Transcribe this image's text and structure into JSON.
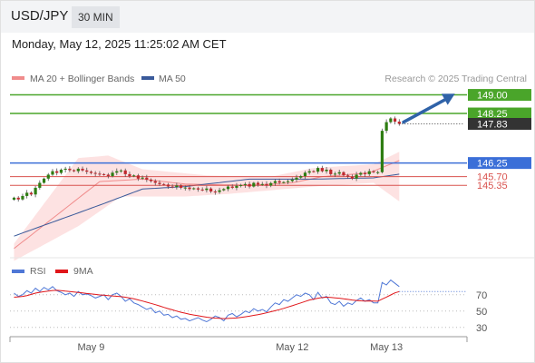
{
  "header": {
    "symbol": "USD/JPY",
    "timeframe": "30 MIN"
  },
  "timestamp": "Monday, May 12, 2025 11:25:02 AM CET",
  "legend": {
    "ma20_label": "MA 20 + Bollinger Bands",
    "ma50_label": "MA 50",
    "credit": "Research © 2025 Trading Central",
    "ma20_color": "#f08c8c",
    "ma50_color": "#3a5a9a"
  },
  "chart_data": [
    {
      "type": "candlestick",
      "title": "",
      "ylim": [
        142.5,
        149.35
      ],
      "x_labels": [
        {
          "label": "May 9",
          "index": 18
        },
        {
          "label": "May 12",
          "index": 65
        },
        {
          "label": "May 13",
          "index": 87
        }
      ],
      "levels": [
        {
          "label": "149.00",
          "value": 149.0,
          "color": "#4aa52a"
        },
        {
          "label": "148.25",
          "value": 148.25,
          "color": "#4aa52a"
        },
        {
          "label": "147.83",
          "value": 147.83,
          "color": "#333333",
          "style": "dotted"
        },
        {
          "label": "146.25",
          "value": 146.25,
          "color": "#3b6fd8"
        },
        {
          "label": "145.70",
          "value": 145.7,
          "color": "#d9534f"
        },
        {
          "label": "145.35",
          "value": 145.35,
          "color": "#d9534f"
        }
      ],
      "closes": [
        144.85,
        144.78,
        144.92,
        145.05,
        144.98,
        145.25,
        145.45,
        145.62,
        145.78,
        145.92,
        145.85,
        145.98,
        146.02,
        145.96,
        145.92,
        146.02,
        145.95,
        145.9,
        145.85,
        145.82,
        145.8,
        145.78,
        145.72,
        145.86,
        145.92,
        145.95,
        145.8,
        145.72,
        145.75,
        145.62,
        145.66,
        145.58,
        145.52,
        145.45,
        145.4,
        145.38,
        145.3,
        145.28,
        145.34,
        145.25,
        145.26,
        145.2,
        145.23,
        145.18,
        145.16,
        145.22,
        145.1,
        145.08,
        145.15,
        145.2,
        145.3,
        145.25,
        145.33,
        145.36,
        145.4,
        145.3,
        145.45,
        145.38,
        145.4,
        145.34,
        145.44,
        145.52,
        145.46,
        145.48,
        145.52,
        145.58,
        145.66,
        145.72,
        145.86,
        145.92,
        145.9,
        146.05,
        145.92,
        145.98,
        145.8,
        145.82,
        145.88,
        145.75,
        145.7,
        145.62,
        145.78,
        145.85,
        145.8,
        145.92,
        145.88,
        145.88,
        147.55,
        147.9,
        148.05,
        147.92,
        147.83
      ],
      "ma20": [
        {
          "i": 0,
          "v": 142.8
        },
        {
          "i": 20,
          "v": 145.5
        },
        {
          "i": 30,
          "v": 145.6
        },
        {
          "i": 40,
          "v": 145.4
        },
        {
          "i": 55,
          "v": 145.35
        },
        {
          "i": 65,
          "v": 145.45
        },
        {
          "i": 72,
          "v": 145.7
        },
        {
          "i": 83,
          "v": 145.85
        },
        {
          "i": 90,
          "v": 146.35
        }
      ],
      "ma50": [
        {
          "i": 0,
          "v": 143.3
        },
        {
          "i": 20,
          "v": 144.55
        },
        {
          "i": 30,
          "v": 145.2
        },
        {
          "i": 40,
          "v": 145.3
        },
        {
          "i": 55,
          "v": 145.6
        },
        {
          "i": 70,
          "v": 145.6
        },
        {
          "i": 84,
          "v": 145.65
        },
        {
          "i": 90,
          "v": 145.8
        }
      ],
      "bb_upper": [
        {
          "i": 0,
          "v": 143.0
        },
        {
          "i": 15,
          "v": 146.45
        },
        {
          "i": 22,
          "v": 146.55
        },
        {
          "i": 30,
          "v": 146.0
        },
        {
          "i": 45,
          "v": 145.75
        },
        {
          "i": 60,
          "v": 145.7
        },
        {
          "i": 70,
          "v": 146.05
        },
        {
          "i": 84,
          "v": 146.2
        },
        {
          "i": 90,
          "v": 146.7
        }
      ],
      "bb_lower": [
        {
          "i": 0,
          "v": 142.3
        },
        {
          "i": 15,
          "v": 143.7
        },
        {
          "i": 25,
          "v": 144.9
        },
        {
          "i": 40,
          "v": 144.9
        },
        {
          "i": 50,
          "v": 145.0
        },
        {
          "i": 60,
          "v": 145.15
        },
        {
          "i": 70,
          "v": 145.3
        },
        {
          "i": 84,
          "v": 145.45
        },
        {
          "i": 90,
          "v": 144.7
        }
      ],
      "projection": {
        "from_index": 91,
        "from_value": 147.9,
        "to_index": 103,
        "to_value": 149.05
      }
    },
    {
      "type": "line",
      "title": "",
      "ylim": [
        22,
        92
      ],
      "series": [
        {
          "name": "RSI",
          "color": "#4f77d6",
          "values": [
            72,
            68,
            70,
            75,
            72,
            78,
            74,
            79,
            76,
            80,
            75,
            73,
            70,
            72,
            68,
            74,
            70,
            71,
            69,
            66,
            68,
            70,
            64,
            70,
            72,
            68,
            62,
            65,
            60,
            58,
            55,
            52,
            54,
            48,
            50,
            45,
            46,
            42,
            44,
            40,
            41,
            38,
            40,
            42,
            39,
            37,
            40,
            44,
            42,
            38,
            45,
            47,
            43,
            46,
            50,
            48,
            53,
            50,
            52,
            49,
            55,
            60,
            58,
            64,
            62,
            66,
            70,
            68,
            72,
            70,
            64,
            73,
            66,
            68,
            60,
            58,
            62,
            56,
            60,
            58,
            63,
            66,
            62,
            64,
            60,
            60,
            85,
            82,
            88,
            84,
            80
          ]
        },
        {
          "name": "9MA",
          "color": "#e0161a",
          "values": [
            67,
            67.5,
            68,
            69,
            70.5,
            72,
            73,
            73.8,
            74.5,
            75.2,
            75.4,
            75.1,
            74.5,
            74,
            73.4,
            72.8,
            72.2,
            71.6,
            71,
            70.4,
            69.8,
            69.4,
            68.9,
            68.5,
            68.1,
            67.7,
            67,
            66,
            65,
            63.7,
            62.3,
            60.9,
            59.5,
            57.9,
            56.3,
            54.6,
            53,
            51.5,
            50,
            48.6,
            47.4,
            46.2,
            45.2,
            44.3,
            43.4,
            42.6,
            41.9,
            41.4,
            41.1,
            40.8,
            41,
            41.3,
            41.6,
            42.3,
            43,
            43.8,
            44.8,
            45.7,
            46.8,
            47.9,
            49.2,
            50.5,
            51.8,
            53.3,
            55,
            56.6,
            58.3,
            60,
            61.8,
            63.5,
            64.7,
            65.8,
            66.5,
            67,
            66.8,
            66.2,
            65.8,
            65,
            64.3,
            63.6,
            63,
            62.6,
            62.3,
            62.4,
            62.2,
            62.1,
            64.7,
            67.1,
            69.8,
            72.3,
            73.9
          ]
        }
      ],
      "ticks": [
        {
          "label": "70",
          "value": 70
        },
        {
          "label": "50",
          "value": 50
        },
        {
          "label": "30",
          "value": 30
        }
      ],
      "last_value_line": 74
    }
  ]
}
